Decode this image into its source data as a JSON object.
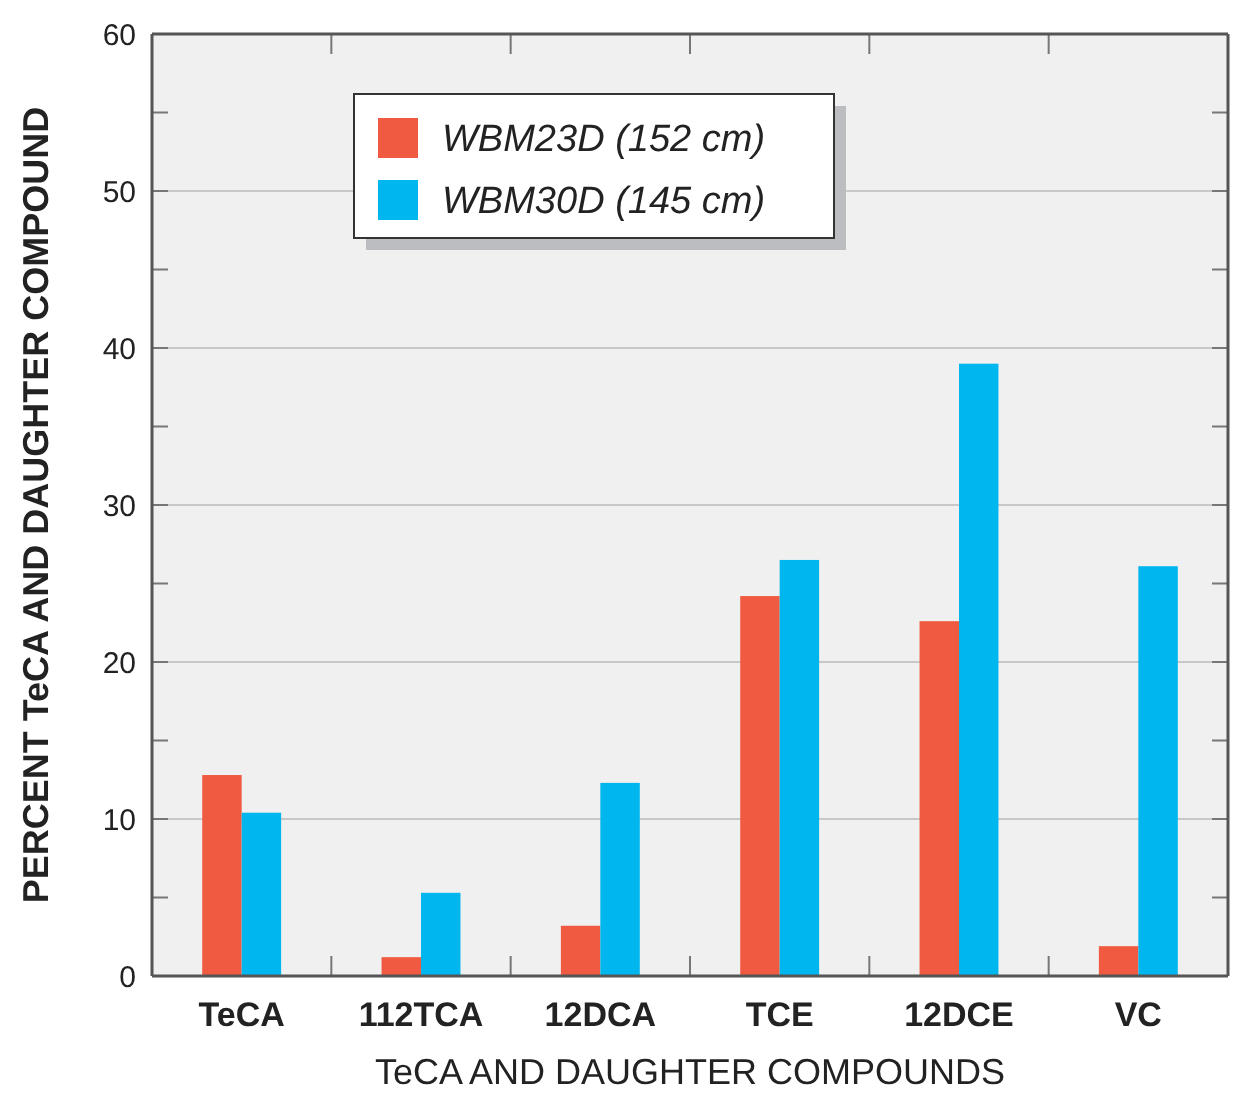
{
  "chart_data": {
    "type": "bar",
    "xlabel": "TeCA AND DAUGHTER COMPOUNDS",
    "ylabel": "PERCENT TeCA AND DAUGHTER COMPOUND",
    "categories": [
      "TeCA",
      "112TCA",
      "12DCA",
      "TCE",
      "12DCE",
      "VC"
    ],
    "series": [
      {
        "name": "WBM23D (152 cm)",
        "color": "#ef5a40",
        "values": [
          12.8,
          1.2,
          3.2,
          24.2,
          22.6,
          1.9
        ]
      },
      {
        "name": "WBM30D (145 cm)",
        "color": "#00b6ee",
        "values": [
          10.4,
          5.3,
          12.3,
          26.5,
          39.0,
          26.1
        ]
      }
    ],
    "ylim": [
      0,
      60
    ],
    "yticks": [
      0,
      {
        "value": 5,
        "label": null
      },
      10,
      {
        "value": 15,
        "label": null
      },
      20,
      {
        "value": 25,
        "label": null
      },
      30,
      {
        "value": 35,
        "label": null
      },
      40,
      {
        "value": 45,
        "label": null
      },
      50,
      {
        "value": 55,
        "label": null
      },
      60
    ],
    "grid": "y",
    "legend": "top left"
  }
}
